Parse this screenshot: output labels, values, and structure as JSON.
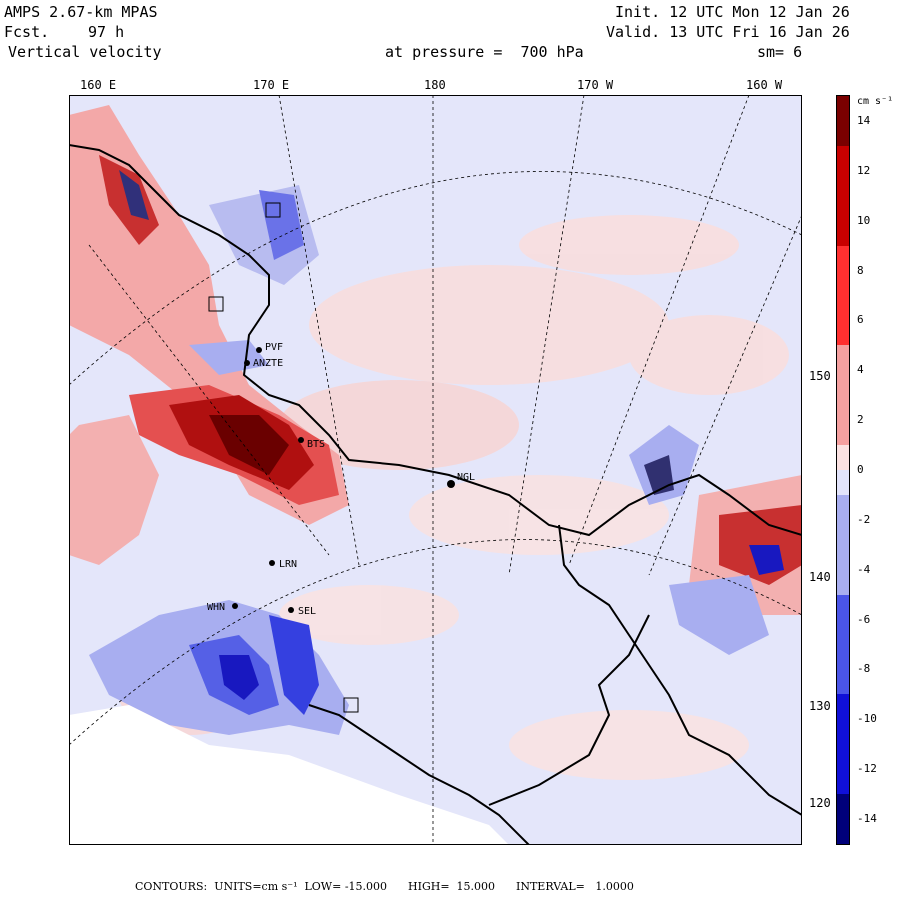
{
  "header": {
    "model": "AMPS 2.67-km MPAS",
    "fcst_label": "Fcst.",
    "fcst_value": "97 h",
    "field": "Vertical velocity",
    "init": "Init. 12 UTC Mon 12 Jan 26",
    "valid": "Valid. 13 UTC Fri 16 Jan 26",
    "pressure": "at pressure =  700 hPa",
    "smooth": "sm= 6"
  },
  "lon_labels": [
    "160 E",
    "170 E",
    "180",
    "170 W",
    "160 W"
  ],
  "lat_labels": [
    "150 W",
    "140 W",
    "130 W",
    "120 W"
  ],
  "stations": [
    "NGL",
    "LRN",
    "WHN",
    "SEL",
    "BTS",
    "PVF",
    "ANZTE"
  ],
  "colorbar": {
    "units": "cm s⁻¹",
    "labels": [
      "14",
      "12",
      "10",
      "8",
      "6",
      "4",
      "2",
      "0",
      "-2",
      "-4",
      "-6",
      "-8",
      "-10",
      "-12",
      "-14"
    ],
    "colors": {
      "pos_max": "#7a0000",
      "pos_high": "#c80000",
      "pos_mid": "#ff3030",
      "pos_low": "#f5a0a0",
      "neutral_pos": "#fbe2e2",
      "neutral_neg": "#e2e4fb",
      "neg_low": "#a8aef0",
      "neg_mid": "#4a55e8",
      "neg_high": "#1010d8",
      "neg_max": "#00007a"
    }
  },
  "footer": {
    "contours": "CONTOURS:  UNITS=cm s⁻¹  LOW= -15.000      HIGH=  15.000      INTERVAL=   1.0000"
  },
  "contour_range": {
    "low": -15.0,
    "high": 15.0,
    "interval": 1.0
  }
}
